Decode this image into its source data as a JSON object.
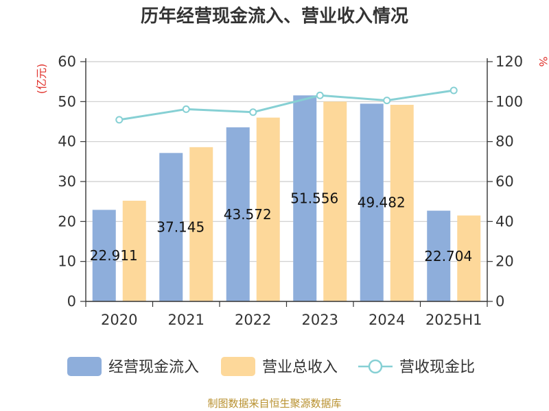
{
  "chart_data": {
    "type": "bar",
    "title": "历年经营现金流入、营业收入情况",
    "categories": [
      "2020",
      "2021",
      "2022",
      "2023",
      "2024",
      "2025H1"
    ],
    "y_left": {
      "unit": "(亿元)",
      "min": 0,
      "max": 60,
      "ticks": [
        "0",
        "10",
        "20",
        "30",
        "40",
        "50",
        "60"
      ]
    },
    "y_right": {
      "unit": "%",
      "min": 0,
      "max": 120,
      "ticks": [
        "0",
        "20",
        "40",
        "60",
        "80",
        "100",
        "120"
      ]
    },
    "series": [
      {
        "name": "经营现金流入",
        "type": "bar",
        "axis": "left",
        "color": "#8eaedb",
        "values": [
          22.911,
          37.145,
          43.572,
          51.556,
          49.482,
          22.704
        ],
        "labels": [
          "22.911",
          "37.145",
          "43.572",
          "51.556",
          "49.482",
          "22.704"
        ]
      },
      {
        "name": "营业总收入",
        "type": "bar",
        "axis": "left",
        "color": "#fdd89a",
        "values": [
          25.2,
          38.6,
          46.0,
          50.0,
          49.2,
          21.5
        ]
      },
      {
        "name": "营收现金比",
        "type": "line",
        "axis": "right",
        "color": "#86d0d4",
        "values": [
          90.9,
          96.2,
          94.7,
          103.1,
          100.6,
          105.6
        ]
      }
    ],
    "grid": true,
    "legend_position": "bottom",
    "source": "制图数据来自恒生聚源数据库"
  }
}
